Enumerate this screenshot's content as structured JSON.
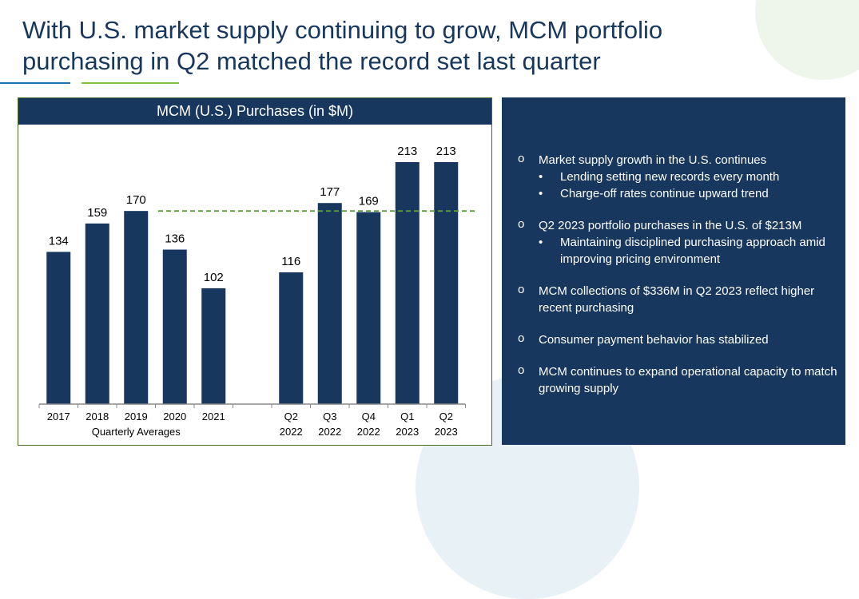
{
  "title": "With U.S. market supply continuing to grow, MCM portfolio purchasing in Q2 matched the record set last quarter",
  "chart_data": {
    "type": "bar",
    "title": "MCM (U.S.) Purchases (in $M)",
    "categories": [
      [
        "2017"
      ],
      [
        "2018"
      ],
      [
        "2019"
      ],
      [
        "2020"
      ],
      [
        "2021"
      ],
      [],
      [
        "Q2",
        "2022"
      ],
      [
        "Q3",
        "2022"
      ],
      [
        "Q4",
        "2022"
      ],
      [
        "Q1",
        "2023"
      ],
      [
        "Q2",
        "2023"
      ]
    ],
    "values": [
      134,
      159,
      170,
      136,
      102,
      null,
      116,
      177,
      169,
      213,
      213
    ],
    "group_label": "Quarterly Averages",
    "reference_line": {
      "value": 170,
      "style": "dashed",
      "color": "#5a9e3a"
    },
    "bar_color": "#17375e",
    "ylim": [
      0,
      213
    ],
    "grid": false
  },
  "panel": {
    "bullets": [
      {
        "marker": "o",
        "text": "Market supply growth in the U.S. continues",
        "sub": [
          "Lending setting new records every month",
          "Charge-off rates continue upward trend"
        ]
      },
      {
        "marker": "o",
        "text": "Q2 2023 portfolio purchases in the U.S. of $213M",
        "sub": [
          "Maintaining disciplined purchasing approach amid improving pricing environment"
        ]
      },
      {
        "marker": "o",
        "text": "MCM collections of $336M in Q2 2023 reflect higher recent purchasing",
        "sub": []
      },
      {
        "marker": "o",
        "text": "Consumer payment behavior has stabilized",
        "sub": []
      },
      {
        "marker": "o",
        "text": "MCM continues to expand operational capacity to match growing supply",
        "sub": []
      }
    ],
    "sub_marker": "•"
  }
}
